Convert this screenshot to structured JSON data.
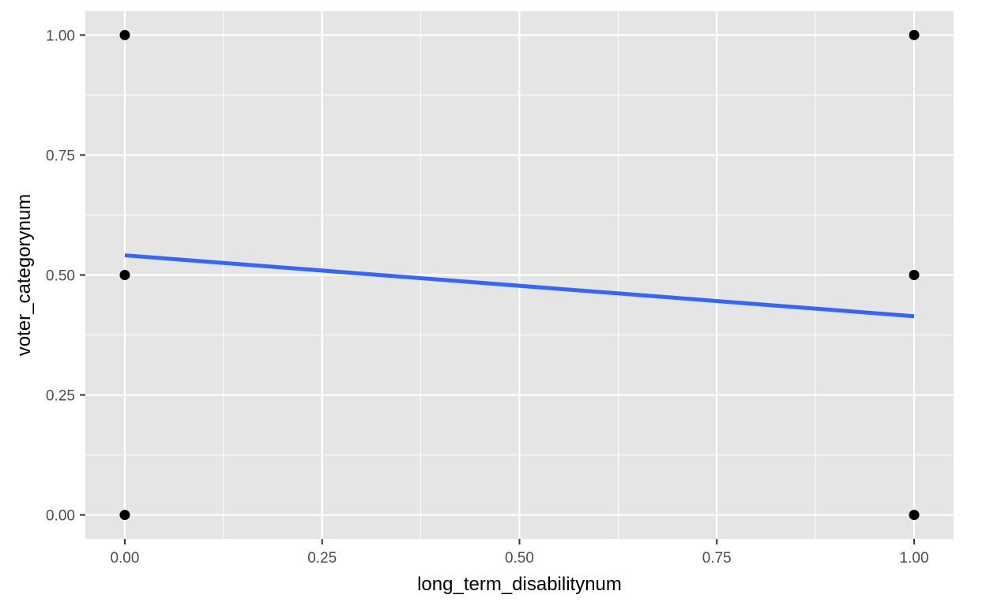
{
  "chart_data": {
    "type": "scatter",
    "title": "",
    "xlabel": "long_term_disabilitynum",
    "ylabel": "voter_categorynum",
    "xlim": [
      -0.05,
      1.05
    ],
    "ylim": [
      -0.05,
      1.05
    ],
    "grid": true,
    "x_ticks": [
      {
        "value": 0.0,
        "label": "0.00"
      },
      {
        "value": 0.25,
        "label": "0.25"
      },
      {
        "value": 0.5,
        "label": "0.50"
      },
      {
        "value": 0.75,
        "label": "0.75"
      },
      {
        "value": 1.0,
        "label": "1.00"
      }
    ],
    "y_ticks": [
      {
        "value": 0.0,
        "label": "0.00"
      },
      {
        "value": 0.25,
        "label": "0.25"
      },
      {
        "value": 0.5,
        "label": "0.50"
      },
      {
        "value": 0.75,
        "label": "0.75"
      },
      {
        "value": 1.0,
        "label": "1.00"
      }
    ],
    "points": [
      {
        "x": 0,
        "y": 1.0
      },
      {
        "x": 0,
        "y": 0.5
      },
      {
        "x": 0,
        "y": 0.0
      },
      {
        "x": 1,
        "y": 1.0
      },
      {
        "x": 1,
        "y": 0.5
      },
      {
        "x": 1,
        "y": 0.0
      }
    ],
    "trend_line": {
      "type": "linear",
      "x": [
        0,
        1
      ],
      "y": [
        0.541,
        0.414
      ]
    },
    "colors": {
      "panel_background": "#e5e5e5",
      "grid": "#ffffff",
      "points": "#000000",
      "trend_line": "#3366ff"
    }
  }
}
